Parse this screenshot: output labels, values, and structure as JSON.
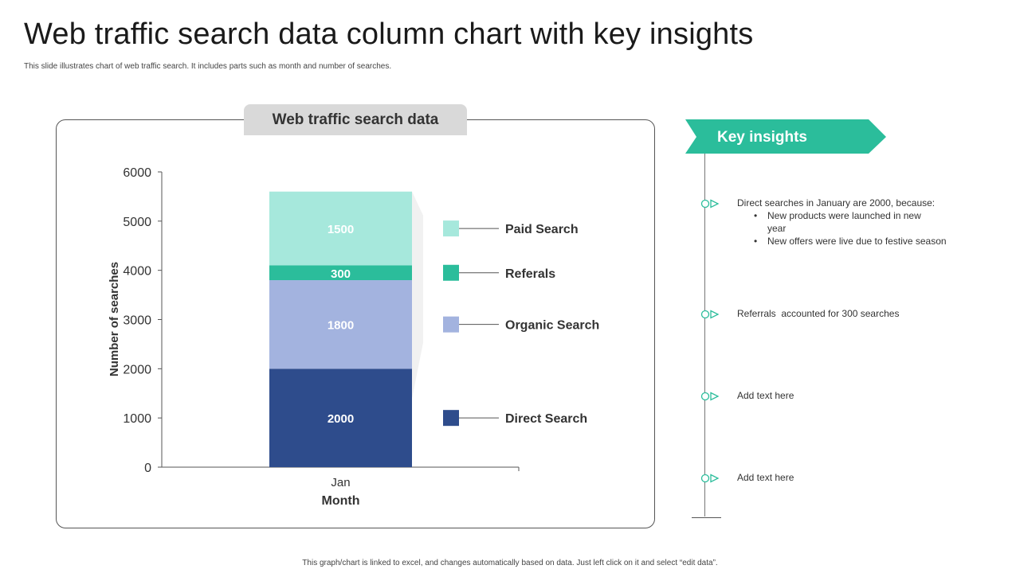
{
  "slide": {
    "title": "Web traffic search data column chart with key insights",
    "subtitle": "This slide illustrates chart of web traffic search. It includes parts such as month and number of searches.",
    "footer": "This graph/chart is linked to excel, and changes automatically based on data. Just left click on it and select “edit data”."
  },
  "chart_data": {
    "type": "bar",
    "stacked": true,
    "title": "Web traffic search data",
    "xlabel": "Month",
    "ylabel": "Number of searches",
    "categories": [
      "Jan"
    ],
    "ylim": [
      0,
      6000
    ],
    "yticks": [
      0,
      1000,
      2000,
      3000,
      4000,
      5000,
      6000
    ],
    "series": [
      {
        "name": "Direct Search",
        "values": [
          2000
        ],
        "color": "#2e4c8c",
        "label_color": "#ffffff"
      },
      {
        "name": "Organic Search",
        "values": [
          1800
        ],
        "color": "#a3b3df",
        "label_color": "#ffffff"
      },
      {
        "name": "Referals",
        "values": [
          300
        ],
        "color": "#2bbd9b",
        "label_color": "#ffffff"
      },
      {
        "name": "Paid Search",
        "values": [
          1500
        ],
        "color": "#a6e8dc",
        "label_color": "#ffffff"
      }
    ],
    "legend_position": "right",
    "grid": false
  },
  "insights": {
    "heading": "Key insights",
    "accent": "#2bbd9b",
    "items": [
      {
        "text": "Direct searches in January are 2000, because:",
        "bullets": [
          "New products were launched in new year",
          "New offers were live due to festive season"
        ]
      },
      {
        "text": "Referrals  accounted for 300 searches",
        "bullets": []
      },
      {
        "text": "Add text here",
        "bullets": []
      },
      {
        "text": "Add text here",
        "bullets": []
      }
    ]
  }
}
